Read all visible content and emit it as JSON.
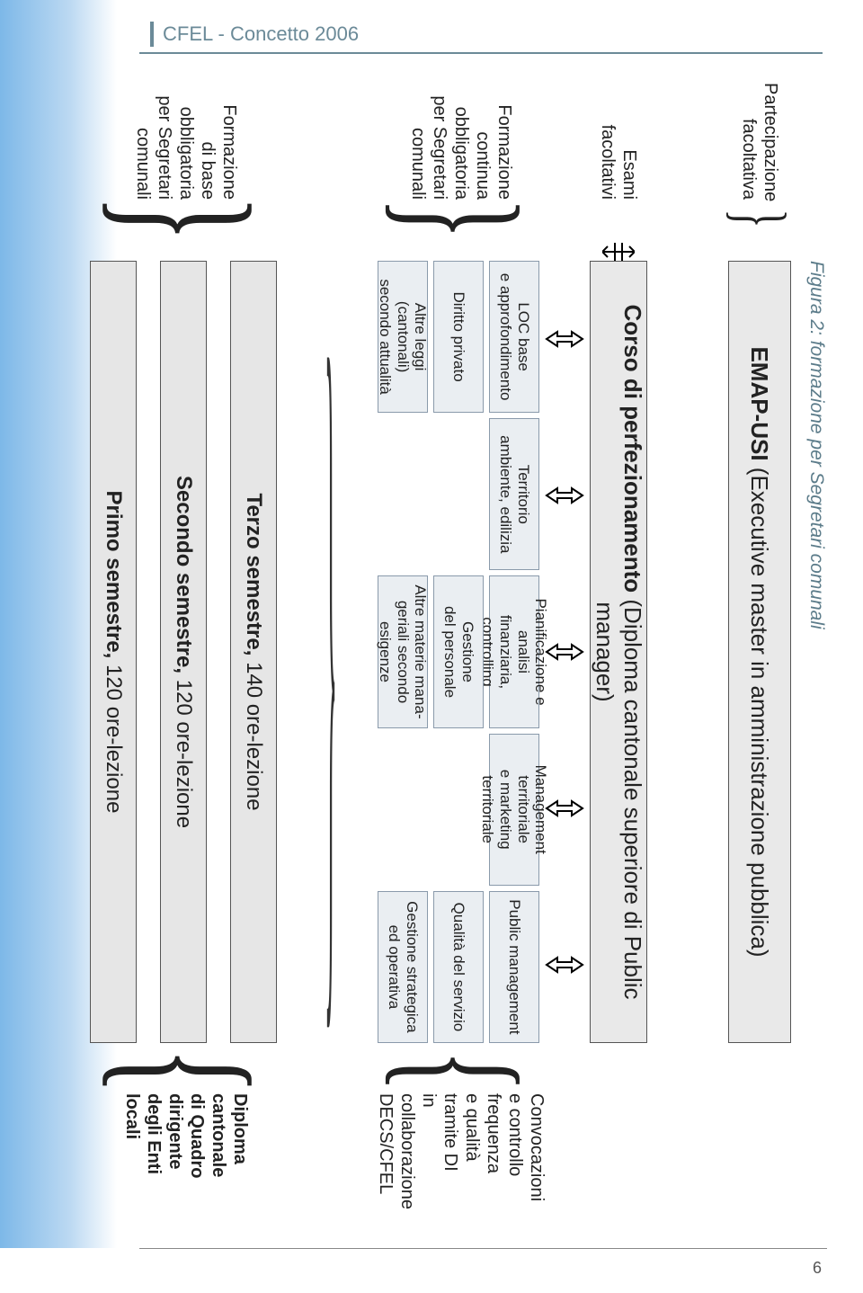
{
  "page": {
    "header": "CFEL - Concetto 2006",
    "number": "6",
    "caption": "Figura 2: formazione per Segretari comunali"
  },
  "colors": {
    "headerText": "#6b8a98",
    "boxFill": "#e9e9e9",
    "moduleFill": "#eaeef2",
    "semFill": "#e6e6e6",
    "border": "#555555"
  },
  "emap": {
    "title_strong": "EMAP-USI",
    "title_rest": " (Executive master in amministrazione pubblica)"
  },
  "corso": {
    "title_strong": "Corso di perfezionamento",
    "title_rest": " (Diploma cantonale superiore di Public manager)"
  },
  "leftLabels": {
    "emap": "Partecipazione\nfacoltativa",
    "esami": "Esami\nfacoltativi",
    "modules": "Formazione\ncontinua\nobbligatoria\nper Segretari\ncomunali",
    "semesters": "Formazione\ndi base\nobbligatoria\nper Segretari\ncomunali"
  },
  "rightLabels": {
    "modules": "Convocazioni\ne controllo\nfrequenza\ne qualità\ntramite DI\nin collaborazione\nDECS/CFEL",
    "semesters_bold": "Diploma\ncantonale\ndi Quadro\ndirigente\ndegli Enti locali"
  },
  "modules": {
    "grid": [
      [
        "LOC base\ne approfondimento",
        "Territorio\nambiente, edilizia",
        "Pianificazione e analisi\nfinanziaria, controlling",
        "Management territoriale\ne marketing territoriale",
        "Public management"
      ],
      [
        "Diritto privato",
        "",
        "Gestione\ndel personale",
        "",
        "Qualità del servizio"
      ],
      [
        "Altre leggi (cantonali)\nsecondo attualità",
        "",
        "Altre materie mana-\ngeriali secondo esigenze",
        "",
        "Gestione strategica\ned operativa"
      ]
    ],
    "label_fontsize": 17,
    "fill": "#eaeef2",
    "border": "#8a9aab"
  },
  "semesters": [
    {
      "strong": "Terzo semestre,",
      "rest": " 140 ore-lezione"
    },
    {
      "strong": "Secondo semestre,",
      "rest": " 120 ore-lezione"
    },
    {
      "strong": "Primo semestre,",
      "rest": " 120 ore-lezione"
    }
  ],
  "arrows": {
    "up_count": 5,
    "dbl_count": 5
  }
}
